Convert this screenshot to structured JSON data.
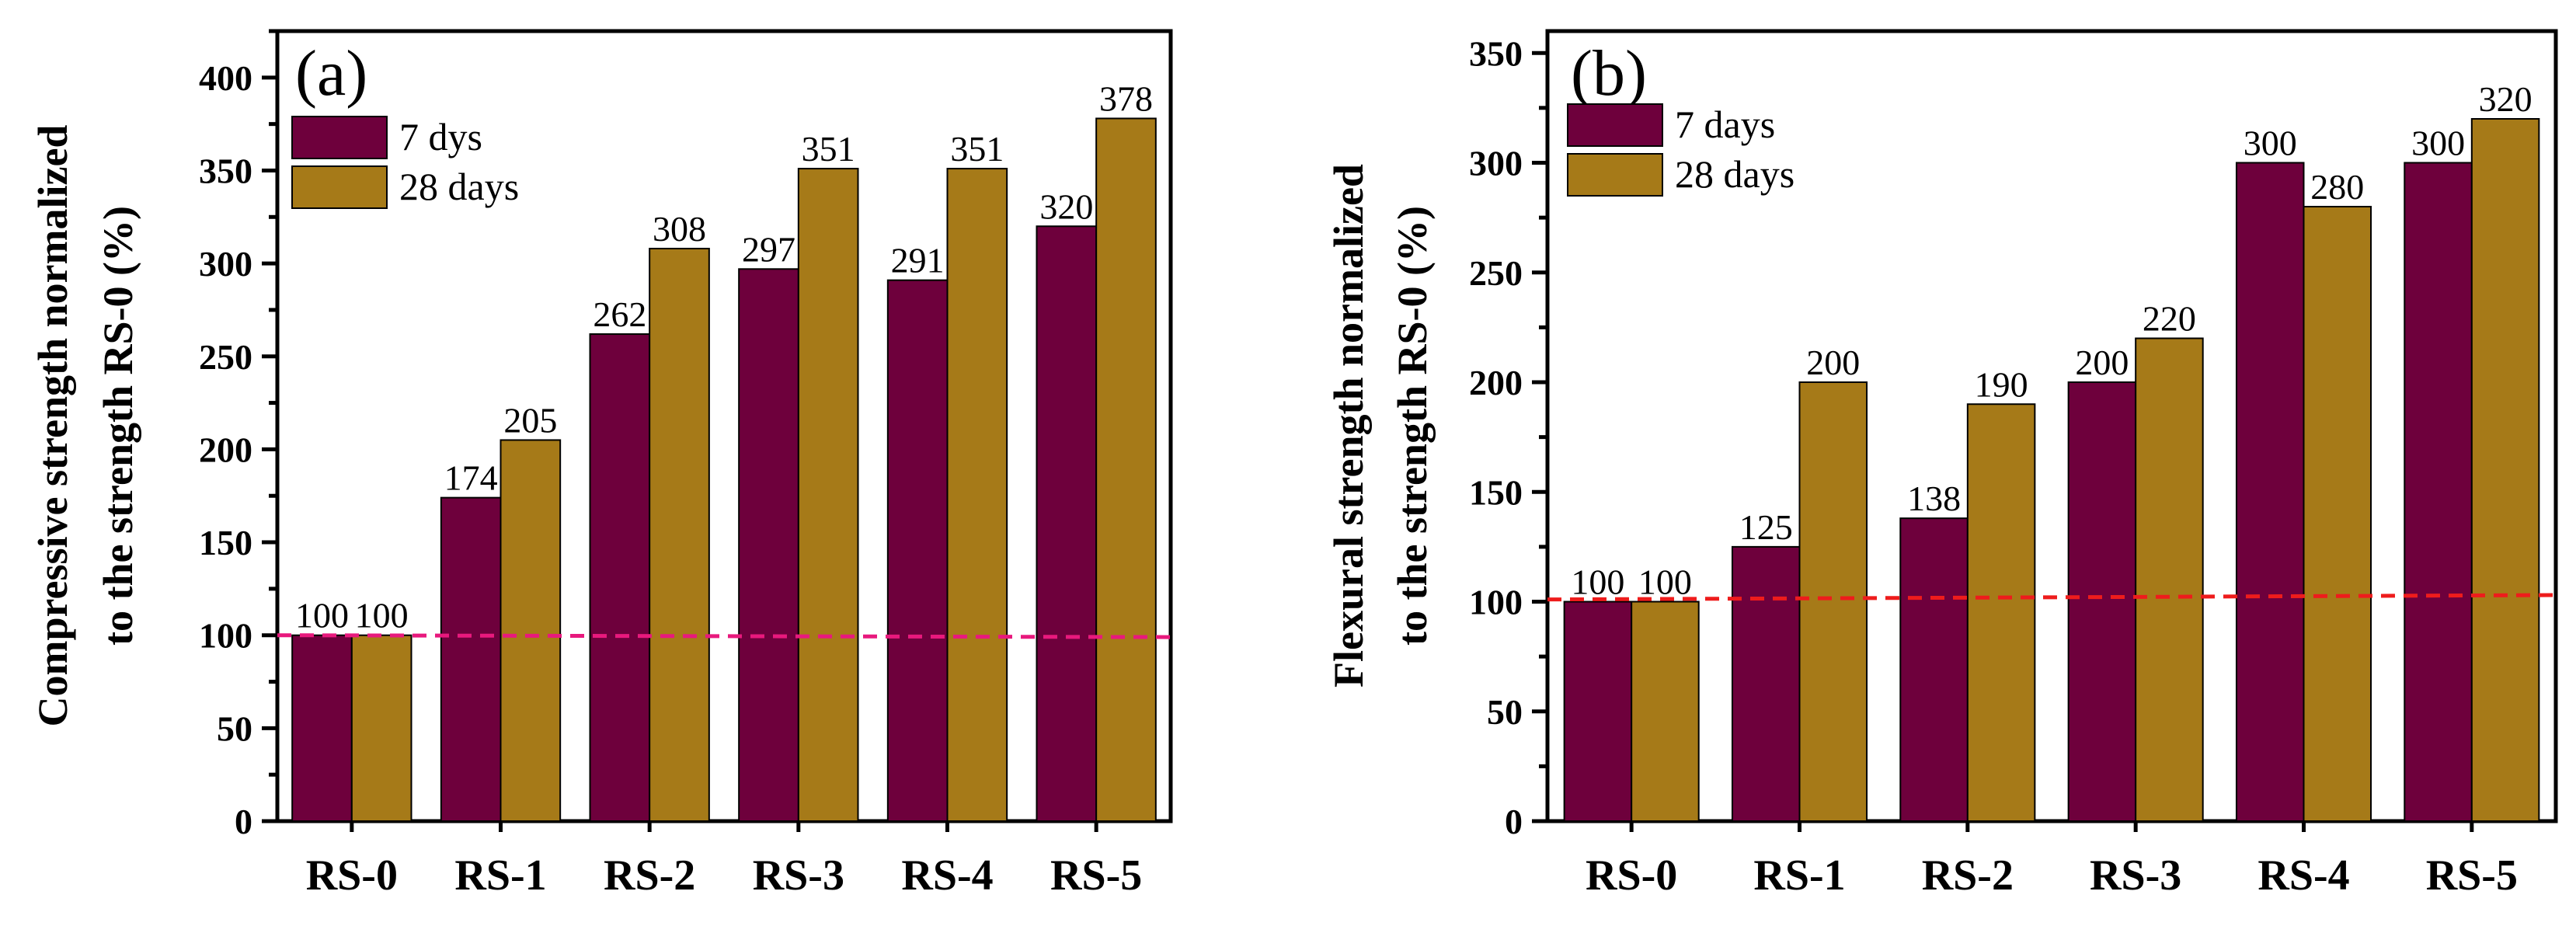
{
  "chart_data": [
    {
      "type": "bar",
      "panel_label": "(a)",
      "categories": [
        "RS-0",
        "RS-1",
        "RS-2",
        "RS-3",
        "RS-4",
        "RS-5"
      ],
      "series": [
        {
          "name": "7 dys",
          "color": "#6e003c",
          "values": [
            100,
            174,
            262,
            297,
            291,
            320
          ]
        },
        {
          "name": "28 days",
          "color": "#a67a18",
          "values": [
            100,
            205,
            308,
            351,
            351,
            378
          ]
        }
      ],
      "data_labels": {
        "7 dys": [
          "100",
          "174",
          "262",
          "297",
          "291",
          "320"
        ],
        "28 days": [
          "100",
          "205",
          "308",
          "351",
          "351",
          "378"
        ]
      },
      "ylabel_lines": [
        "Compressive strength normalized",
        "to the strength RS-0 (%)"
      ],
      "ylim": [
        0,
        425
      ],
      "yticks": [
        0,
        50,
        100,
        150,
        200,
        250,
        300,
        350,
        400
      ],
      "ytick_labels": [
        "0",
        "50",
        "100",
        "150",
        "200",
        "250",
        "300",
        "350",
        "400"
      ],
      "reference_line": {
        "from": 100,
        "to": 99,
        "color": "#e8197d",
        "style": "dashed"
      },
      "legend_position": "top-left"
    },
    {
      "type": "bar",
      "panel_label": "(b)",
      "categories": [
        "RS-0",
        "RS-1",
        "RS-2",
        "RS-3",
        "RS-4",
        "RS-5"
      ],
      "series": [
        {
          "name": "7 days",
          "color": "#6e003c",
          "values": [
            100,
            125,
            138,
            200,
            300,
            300
          ]
        },
        {
          "name": "28 days",
          "color": "#a67a18",
          "values": [
            100,
            200,
            190,
            220,
            280,
            320
          ]
        }
      ],
      "data_labels": {
        "7 days": [
          "100",
          "125",
          "138",
          "200",
          "300",
          "300"
        ],
        "28 days": [
          "100",
          "200",
          "190",
          "220",
          "280",
          "320"
        ]
      },
      "ylabel_lines": [
        "Flexural  strength normalized",
        "to the strength RS-0 (%)"
      ],
      "ylim": [
        0,
        360
      ],
      "yticks": [
        0,
        50,
        100,
        150,
        200,
        250,
        300,
        350
      ],
      "ytick_labels": [
        "0",
        "50",
        "100",
        "150",
        "200",
        "250",
        "300",
        "350"
      ],
      "reference_line": {
        "from": 101,
        "to": 103,
        "color": "#ee1c1c",
        "style": "dashed"
      },
      "legend_position": "top-left"
    }
  ]
}
